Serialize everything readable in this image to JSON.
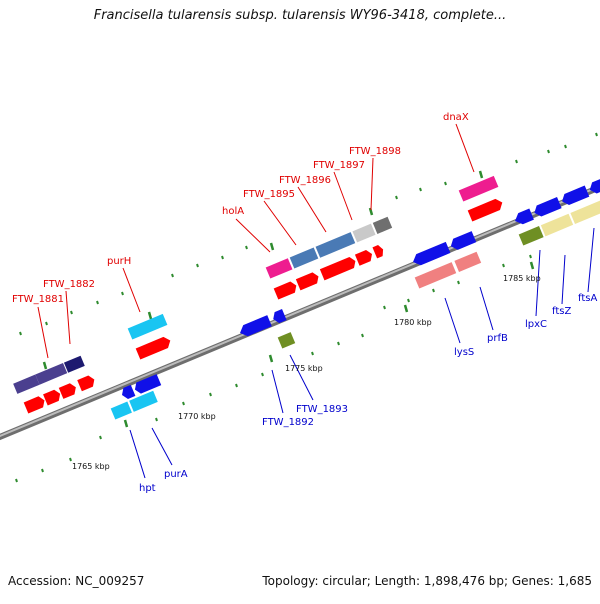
{
  "header": {
    "title": "Francisella tularensis subsp. tularensis WY96-3418, complete..."
  },
  "footer": {
    "accession": "Accession: NC_009257",
    "summary": "Topology: circular; Length: 1,898,476 bp; Genes: 1,685"
  },
  "colors": {
    "background": "#ffffff",
    "backbone": "#8a8a8a",
    "tick": "#2e8b2e",
    "label_top": "#e00000",
    "label_bottom": "#0000cc",
    "cds_red": "#ff0000"
  },
  "scale_labels": [
    {
      "id": "kbp-1765",
      "text": "1765 kbp"
    },
    {
      "id": "kbp-1770",
      "text": "1770 kbp"
    },
    {
      "id": "kbp-1775",
      "text": "1775 kbp"
    },
    {
      "id": "kbp-1780",
      "text": "1780 kbp"
    },
    {
      "id": "kbp-1785",
      "text": "1785 kbp"
    }
  ],
  "gene_labels_top": [
    {
      "id": "FTW_1881",
      "text": "FTW_1881"
    },
    {
      "id": "FTW_1882",
      "text": "FTW_1882"
    },
    {
      "id": "purH",
      "text": "purH"
    },
    {
      "id": "holA",
      "text": "holA"
    },
    {
      "id": "FTW_1895",
      "text": "FTW_1895"
    },
    {
      "id": "FTW_1896",
      "text": "FTW_1896"
    },
    {
      "id": "FTW_1897",
      "text": "FTW_1897"
    },
    {
      "id": "FTW_1898",
      "text": "FTW_1898"
    },
    {
      "id": "dnaX",
      "text": "dnaX"
    }
  ],
  "gene_labels_bottom": [
    {
      "id": "hpt",
      "text": "hpt"
    },
    {
      "id": "purA",
      "text": "purA"
    },
    {
      "id": "FTW_1892",
      "text": "FTW_1892"
    },
    {
      "id": "FTW_1893",
      "text": "FTW_1893"
    },
    {
      "id": "lysS",
      "text": "lysS"
    },
    {
      "id": "prfB",
      "text": "prfB"
    },
    {
      "id": "lpxC",
      "text": "lpxC"
    },
    {
      "id": "ftsZ",
      "text": "ftsZ"
    },
    {
      "id": "ftsA",
      "text": "ftsA"
    }
  ]
}
